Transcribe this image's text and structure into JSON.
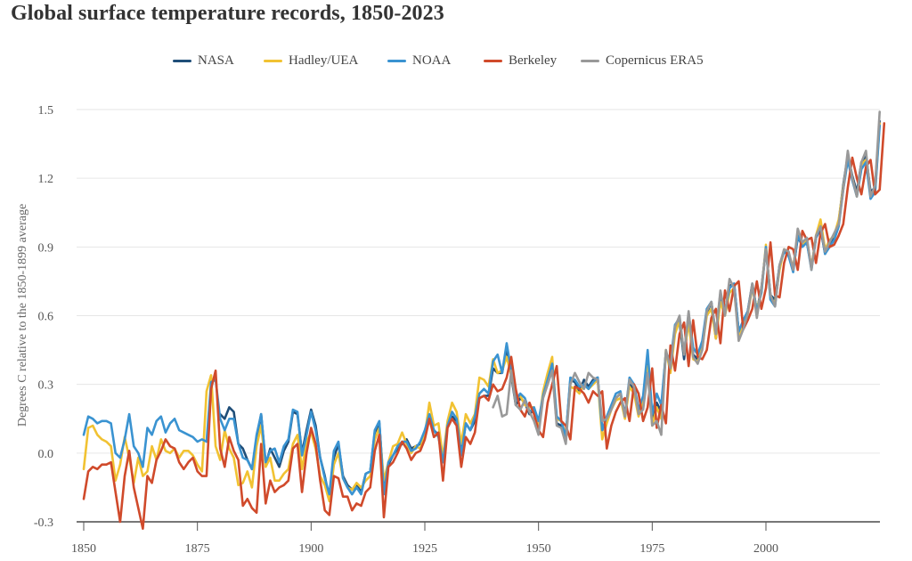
{
  "chart_data": {
    "type": "line",
    "title": "Global surface temperature records, 1850-2023",
    "xlabel": "",
    "ylabel": "Degrees C relative to the 1850-1899 average",
    "xlim": [
      1850,
      2024
    ],
    "ylim": [
      -0.3,
      1.5
    ],
    "x_ticks": [
      1850,
      1875,
      1900,
      1925,
      1950,
      1975,
      2000
    ],
    "x_tick_labels": [
      "1850",
      "1875",
      "1900",
      "1925",
      "1950",
      "1975",
      "2000"
    ],
    "y_ticks": [
      -0.3,
      0.0,
      0.3,
      0.6,
      0.9,
      1.2,
      1.5
    ],
    "y_tick_labels": [
      "-0.3",
      "0.0",
      "0.3",
      "0.6",
      "0.9",
      "1.2",
      "1.5"
    ],
    "grid": "horizontal",
    "legend_position": "top-center",
    "series": [
      {
        "name": "NASA",
        "color": "#1f4e79",
        "start_year": 1880,
        "values": [
          0.17,
          0.15,
          0.2,
          0.18,
          0.04,
          0.02,
          -0.03,
          -0.07,
          0.06,
          0.17,
          -0.05,
          0.02,
          -0.02,
          -0.06,
          0.01,
          0.05,
          0.18,
          0.17,
          0.0,
          0.1,
          0.19,
          0.12,
          -0.02,
          -0.1,
          -0.2,
          -0.02,
          0.04,
          -0.1,
          -0.14,
          -0.16,
          -0.14,
          -0.17,
          -0.09,
          -0.08,
          0.09,
          0.13,
          -0.15,
          -0.05,
          -0.01,
          0.02,
          0.04,
          0.06,
          0.02,
          0.03,
          0.04,
          0.09,
          0.16,
          0.1,
          0.08,
          -0.04,
          0.12,
          0.16,
          0.14,
          0.0,
          0.13,
          0.1,
          0.14,
          0.24,
          0.25,
          0.25,
          0.37,
          0.35,
          0.35,
          0.46,
          0.34,
          0.21,
          0.24,
          0.22,
          0.17,
          0.19,
          0.11,
          0.25,
          0.32,
          0.38,
          0.13,
          0.12,
          0.07,
          0.32,
          0.31,
          0.27,
          0.32,
          0.29,
          0.32,
          0.33,
          0.1,
          0.15,
          0.2,
          0.24,
          0.26,
          0.17,
          0.3,
          0.28,
          0.18,
          0.23,
          0.4,
          0.15,
          0.22,
          0.18,
          0.44,
          0.38,
          0.54,
          0.57,
          0.41,
          0.6,
          0.43,
          0.41,
          0.47,
          0.61,
          0.66,
          0.5,
          0.68,
          0.61,
          0.73,
          0.74,
          0.53,
          0.57,
          0.62,
          0.74,
          0.62,
          0.72,
          0.89,
          0.69,
          0.67,
          0.82,
          0.88,
          0.87,
          0.8,
          0.94,
          0.91,
          0.92,
          0.81,
          0.94,
          0.98,
          0.87,
          0.91,
          0.94,
          1.01,
          1.17,
          1.3,
          1.21,
          1.14,
          1.27,
          1.3,
          1.14,
          1.16,
          1.45
        ]
      },
      {
        "name": "Hadley/UEA",
        "color": "#f1c232",
        "start_year": 1850,
        "values": [
          -0.07,
          0.11,
          0.12,
          0.08,
          0.06,
          0.05,
          0.03,
          -0.12,
          -0.05,
          0.07,
          -0.02,
          -0.13,
          -0.02,
          -0.1,
          -0.08,
          0.03,
          -0.03,
          0.06,
          0.01,
          0.0,
          0.02,
          -0.02,
          0.01,
          0.01,
          -0.01,
          -0.05,
          -0.08,
          0.27,
          0.34,
          0.03,
          -0.03,
          0.1,
          0.02,
          -0.02,
          -0.14,
          -0.13,
          -0.08,
          -0.15,
          0.03,
          0.12,
          -0.06,
          -0.02,
          -0.12,
          -0.12,
          -0.09,
          -0.07,
          0.04,
          0.08,
          -0.07,
          0.05,
          0.09,
          0.02,
          -0.1,
          -0.14,
          -0.21,
          -0.05,
          0.0,
          -0.11,
          -0.15,
          -0.16,
          -0.13,
          -0.15,
          -0.12,
          -0.1,
          0.06,
          0.11,
          -0.12,
          -0.04,
          0.03,
          0.04,
          0.09,
          0.04,
          0.0,
          0.03,
          0.02,
          0.08,
          0.22,
          0.12,
          0.13,
          -0.02,
          0.14,
          0.22,
          0.18,
          0.04,
          0.17,
          0.13,
          0.17,
          0.33,
          0.32,
          0.29,
          0.41,
          0.35,
          0.36,
          0.42,
          0.34,
          0.24,
          0.25,
          0.21,
          0.2,
          0.2,
          0.12,
          0.27,
          0.35,
          0.42,
          0.15,
          0.14,
          0.08,
          0.29,
          0.28,
          0.26,
          0.3,
          0.28,
          0.3,
          0.32,
          0.06,
          0.13,
          0.19,
          0.23,
          0.24,
          0.15,
          0.29,
          0.26,
          0.16,
          0.22,
          0.38,
          0.12,
          0.2,
          0.15,
          0.45,
          0.35,
          0.52,
          0.58,
          0.43,
          0.57,
          0.41,
          0.4,
          0.46,
          0.6,
          0.63,
          0.5,
          0.66,
          0.6,
          0.7,
          0.72,
          0.51,
          0.56,
          0.61,
          0.72,
          0.63,
          0.7,
          0.91,
          0.67,
          0.66,
          0.8,
          0.89,
          0.87,
          0.81,
          0.96,
          0.91,
          0.93,
          0.81,
          0.95,
          1.02,
          0.89,
          0.93,
          0.95,
          1.02,
          1.16,
          1.28,
          1.2,
          1.12,
          1.26,
          1.28,
          1.12,
          1.14,
          1.44
        ]
      },
      {
        "name": "NOAA",
        "color": "#3a93d1",
        "start_year": 1850,
        "values": [
          0.08,
          0.16,
          0.15,
          0.13,
          0.14,
          0.14,
          0.13,
          0.0,
          -0.02,
          0.06,
          0.17,
          0.03,
          0.0,
          -0.06,
          0.11,
          0.08,
          0.14,
          0.16,
          0.09,
          0.13,
          0.15,
          0.1,
          0.09,
          0.08,
          0.07,
          0.05,
          0.06,
          0.05,
          0.31,
          0.32,
          0.15,
          0.1,
          0.15,
          0.15,
          0.04,
          -0.02,
          -0.03,
          -0.07,
          0.08,
          0.17,
          -0.04,
          0.01,
          0.02,
          -0.04,
          0.03,
          0.06,
          0.19,
          0.18,
          -0.01,
          0.08,
          0.18,
          0.1,
          -0.02,
          -0.11,
          -0.18,
          0.01,
          0.05,
          -0.11,
          -0.15,
          -0.18,
          -0.15,
          -0.18,
          -0.09,
          -0.08,
          0.1,
          0.14,
          -0.18,
          -0.04,
          -0.01,
          0.03,
          0.05,
          0.05,
          0.01,
          0.02,
          0.05,
          0.1,
          0.17,
          0.1,
          0.07,
          -0.04,
          0.12,
          0.18,
          0.15,
          -0.01,
          0.13,
          0.1,
          0.16,
          0.26,
          0.28,
          0.26,
          0.4,
          0.43,
          0.35,
          0.48,
          0.36,
          0.23,
          0.26,
          0.24,
          0.18,
          0.2,
          0.14,
          0.25,
          0.32,
          0.39,
          0.16,
          0.14,
          0.07,
          0.33,
          0.32,
          0.29,
          0.3,
          0.28,
          0.31,
          0.33,
          0.1,
          0.16,
          0.21,
          0.26,
          0.27,
          0.16,
          0.33,
          0.3,
          0.19,
          0.25,
          0.45,
          0.17,
          0.26,
          0.21,
          0.44,
          0.4,
          0.56,
          0.59,
          0.43,
          0.61,
          0.46,
          0.43,
          0.49,
          0.63,
          0.66,
          0.52,
          0.7,
          0.62,
          0.72,
          0.74,
          0.53,
          0.58,
          0.62,
          0.73,
          0.62,
          0.7,
          0.9,
          0.67,
          0.64,
          0.82,
          0.88,
          0.86,
          0.79,
          0.95,
          0.9,
          0.92,
          0.8,
          0.94,
          0.99,
          0.87,
          0.9,
          0.93,
          0.99,
          1.15,
          1.28,
          1.19,
          1.12,
          1.24,
          1.27,
          1.11,
          1.14,
          1.43
        ]
      },
      {
        "name": "Berkeley",
        "color": "#d04a2b",
        "start_year": 1850,
        "values": [
          -0.2,
          -0.08,
          -0.06,
          -0.07,
          -0.05,
          -0.05,
          -0.04,
          -0.17,
          -0.3,
          -0.1,
          0.01,
          -0.15,
          -0.24,
          -0.33,
          -0.1,
          -0.13,
          -0.03,
          0.01,
          0.06,
          0.03,
          0.02,
          -0.04,
          -0.07,
          -0.04,
          -0.02,
          -0.08,
          -0.1,
          -0.1,
          0.28,
          0.36,
          0.02,
          -0.06,
          0.07,
          0.01,
          -0.03,
          -0.23,
          -0.2,
          -0.24,
          -0.26,
          0.04,
          -0.22,
          -0.12,
          -0.17,
          -0.15,
          -0.14,
          -0.12,
          0.02,
          0.04,
          -0.17,
          0.0,
          0.11,
          0.04,
          -0.12,
          -0.25,
          -0.27,
          -0.1,
          -0.11,
          -0.19,
          -0.19,
          -0.25,
          -0.22,
          -0.23,
          -0.17,
          -0.15,
          0.01,
          0.08,
          -0.28,
          -0.06,
          -0.04,
          0.0,
          0.05,
          0.02,
          -0.03,
          0.0,
          0.01,
          0.06,
          0.15,
          0.07,
          0.09,
          -0.12,
          0.11,
          0.15,
          0.12,
          -0.06,
          0.07,
          0.04,
          0.09,
          0.24,
          0.25,
          0.23,
          0.3,
          0.27,
          0.28,
          0.33,
          0.42,
          0.28,
          0.19,
          0.16,
          0.22,
          0.17,
          0.1,
          0.07,
          0.22,
          0.3,
          0.38,
          0.14,
          0.12,
          0.06,
          0.29,
          0.28,
          0.26,
          0.22,
          0.27,
          0.25,
          0.27,
          0.02,
          0.12,
          0.18,
          0.22,
          0.24,
          0.14,
          0.3,
          0.26,
          0.14,
          0.2,
          0.37,
          0.11,
          0.21,
          0.13,
          0.47,
          0.36,
          0.52,
          0.57,
          0.38,
          0.58,
          0.42,
          0.41,
          0.45,
          0.59,
          0.63,
          0.48,
          0.71,
          0.62,
          0.73,
          0.75,
          0.54,
          0.58,
          0.63,
          0.75,
          0.63,
          0.72,
          0.92,
          0.69,
          0.68,
          0.83,
          0.9,
          0.89,
          0.8,
          0.97,
          0.93,
          0.94,
          0.83,
          0.96,
          1.0,
          0.9,
          0.91,
          0.95,
          1.0,
          1.16,
          1.29,
          1.2,
          1.13,
          1.25,
          1.28,
          1.13,
          1.15,
          1.44
        ]
      },
      {
        "name": "Copernicus ERA5",
        "color": "#999999",
        "start_year": 1940,
        "values": [
          0.2,
          0.25,
          0.16,
          0.17,
          0.36,
          0.21,
          0.19,
          0.23,
          0.18,
          0.14,
          0.08,
          0.24,
          0.3,
          0.36,
          0.12,
          0.11,
          0.04,
          0.3,
          0.35,
          0.31,
          0.28,
          0.35,
          0.33,
          0.32,
          0.14,
          0.15,
          0.19,
          0.24,
          0.26,
          0.16,
          0.32,
          0.29,
          0.17,
          0.19,
          0.35,
          0.12,
          0.14,
          0.08,
          0.45,
          0.37,
          0.55,
          0.6,
          0.43,
          0.62,
          0.42,
          0.39,
          0.45,
          0.62,
          0.66,
          0.52,
          0.71,
          0.6,
          0.76,
          0.72,
          0.49,
          0.54,
          0.61,
          0.74,
          0.59,
          0.72,
          0.89,
          0.69,
          0.64,
          0.82,
          0.89,
          0.88,
          0.8,
          0.98,
          0.92,
          0.94,
          0.8,
          0.95,
          0.99,
          0.88,
          0.92,
          0.96,
          1.0,
          1.15,
          1.32,
          1.2,
          1.12,
          1.27,
          1.32,
          1.12,
          1.17,
          1.49
        ]
      }
    ]
  }
}
